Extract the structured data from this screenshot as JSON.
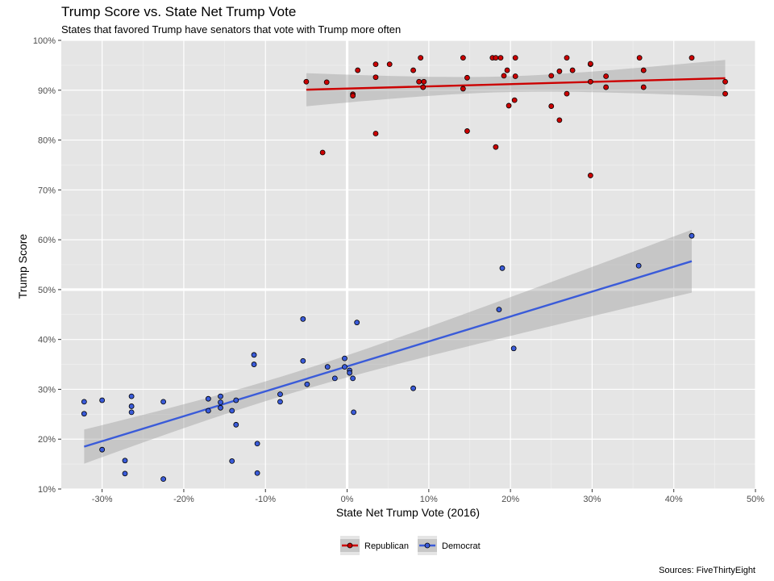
{
  "chart_data": {
    "type": "scatter",
    "title": "Trump Score vs. State Net Trump Vote",
    "subtitle": "States that favored Trump have senators that vote with Trump more often",
    "xlabel": "State Net Trump Vote (2016)",
    "ylabel": "Trump Score",
    "caption": "Sources: FiveThirtyEight",
    "xlim": [
      -35,
      50
    ],
    "ylim": [
      10,
      100
    ],
    "x_ticks": [
      -30,
      -20,
      -10,
      0,
      10,
      20,
      30,
      40,
      50
    ],
    "y_ticks": [
      10,
      20,
      30,
      40,
      50,
      60,
      70,
      80,
      90,
      100
    ],
    "x_tick_labels": [
      "-30%",
      "-20%",
      "-10%",
      "0%",
      "10%",
      "20%",
      "30%",
      "40%",
      "50%"
    ],
    "y_tick_labels": [
      "10%",
      "20%",
      "30%",
      "40%",
      "50%",
      "60%",
      "70%",
      "80%",
      "90%",
      "100%"
    ],
    "grid": true,
    "legend_position": "bottom",
    "series": [
      {
        "name": "Republican",
        "color": "#cc0000",
        "points": [
          [
            -5.0,
            91.7
          ],
          [
            -2.5,
            91.6
          ],
          [
            -3.0,
            77.5
          ],
          [
            0.7,
            89.2
          ],
          [
            0.7,
            88.9
          ],
          [
            1.3,
            94.0
          ],
          [
            3.5,
            95.2
          ],
          [
            3.5,
            92.6
          ],
          [
            5.2,
            95.2
          ],
          [
            3.5,
            81.3
          ],
          [
            8.1,
            94.0
          ],
          [
            9.0,
            96.5
          ],
          [
            8.8,
            91.7
          ],
          [
            9.4,
            91.7
          ],
          [
            9.3,
            90.6
          ],
          [
            14.2,
            96.5
          ],
          [
            14.2,
            90.3
          ],
          [
            14.7,
            92.5
          ],
          [
            14.7,
            81.8
          ],
          [
            17.8,
            96.5
          ],
          [
            18.2,
            96.5
          ],
          [
            18.8,
            96.5
          ],
          [
            19.2,
            92.9
          ],
          [
            19.6,
            94.0
          ],
          [
            19.8,
            86.9
          ],
          [
            20.5,
            88.0
          ],
          [
            20.6,
            96.5
          ],
          [
            20.6,
            92.8
          ],
          [
            18.2,
            78.6
          ],
          [
            25.0,
            92.9
          ],
          [
            25.0,
            86.8
          ],
          [
            26.0,
            93.8
          ],
          [
            26.0,
            84.0
          ],
          [
            26.9,
            96.5
          ],
          [
            26.9,
            89.3
          ],
          [
            27.6,
            94.0
          ],
          [
            29.8,
            95.2
          ],
          [
            29.8,
            95.3
          ],
          [
            29.8,
            91.7
          ],
          [
            29.8,
            72.9
          ],
          [
            31.7,
            92.8
          ],
          [
            31.7,
            90.6
          ],
          [
            35.8,
            96.5
          ],
          [
            36.3,
            94.0
          ],
          [
            36.3,
            90.6
          ],
          [
            42.2,
            96.5
          ],
          [
            46.3,
            91.7
          ],
          [
            46.3,
            89.3
          ]
        ],
        "trend": {
          "x": [
            -5.0,
            46.3
          ],
          "y": [
            90.1,
            92.4
          ]
        }
      },
      {
        "name": "Democrat",
        "color": "#3a5bd9",
        "points": [
          [
            -32.2,
            27.5
          ],
          [
            -32.2,
            25.1
          ],
          [
            -30.0,
            27.8
          ],
          [
            -30.0,
            17.9
          ],
          [
            -27.2,
            15.7
          ],
          [
            -27.2,
            13.1
          ],
          [
            -26.4,
            28.6
          ],
          [
            -26.4,
            26.6
          ],
          [
            -26.4,
            25.4
          ],
          [
            -22.5,
            27.5
          ],
          [
            -22.5,
            12.0
          ],
          [
            -17.0,
            28.1
          ],
          [
            -17.0,
            25.7
          ],
          [
            -15.5,
            28.6
          ],
          [
            -15.5,
            27.4
          ],
          [
            -15.5,
            26.3
          ],
          [
            -14.1,
            25.7
          ],
          [
            -14.1,
            15.6
          ],
          [
            -13.6,
            27.8
          ],
          [
            -13.6,
            22.9
          ],
          [
            -11.4,
            36.9
          ],
          [
            -11.4,
            35.0
          ],
          [
            -11.0,
            19.1
          ],
          [
            -11.0,
            13.2
          ],
          [
            -8.2,
            29.0
          ],
          [
            -8.2,
            27.5
          ],
          [
            -5.4,
            44.1
          ],
          [
            -5.4,
            35.7
          ],
          [
            -4.9,
            31.0
          ],
          [
            -2.4,
            34.5
          ],
          [
            -1.5,
            32.2
          ],
          [
            -0.3,
            36.2
          ],
          [
            -0.3,
            34.5
          ],
          [
            0.3,
            33.8
          ],
          [
            0.3,
            33.3
          ],
          [
            0.7,
            32.2
          ],
          [
            0.8,
            25.4
          ],
          [
            1.2,
            43.4
          ],
          [
            8.1,
            30.2
          ],
          [
            18.6,
            46.0
          ],
          [
            19.0,
            54.3
          ],
          [
            20.4,
            38.2
          ],
          [
            35.7,
            54.8
          ],
          [
            42.2,
            60.8
          ]
        ],
        "trend": {
          "x": [
            -32.2,
            42.2
          ],
          "y": [
            18.5,
            55.7
          ]
        }
      }
    ]
  }
}
